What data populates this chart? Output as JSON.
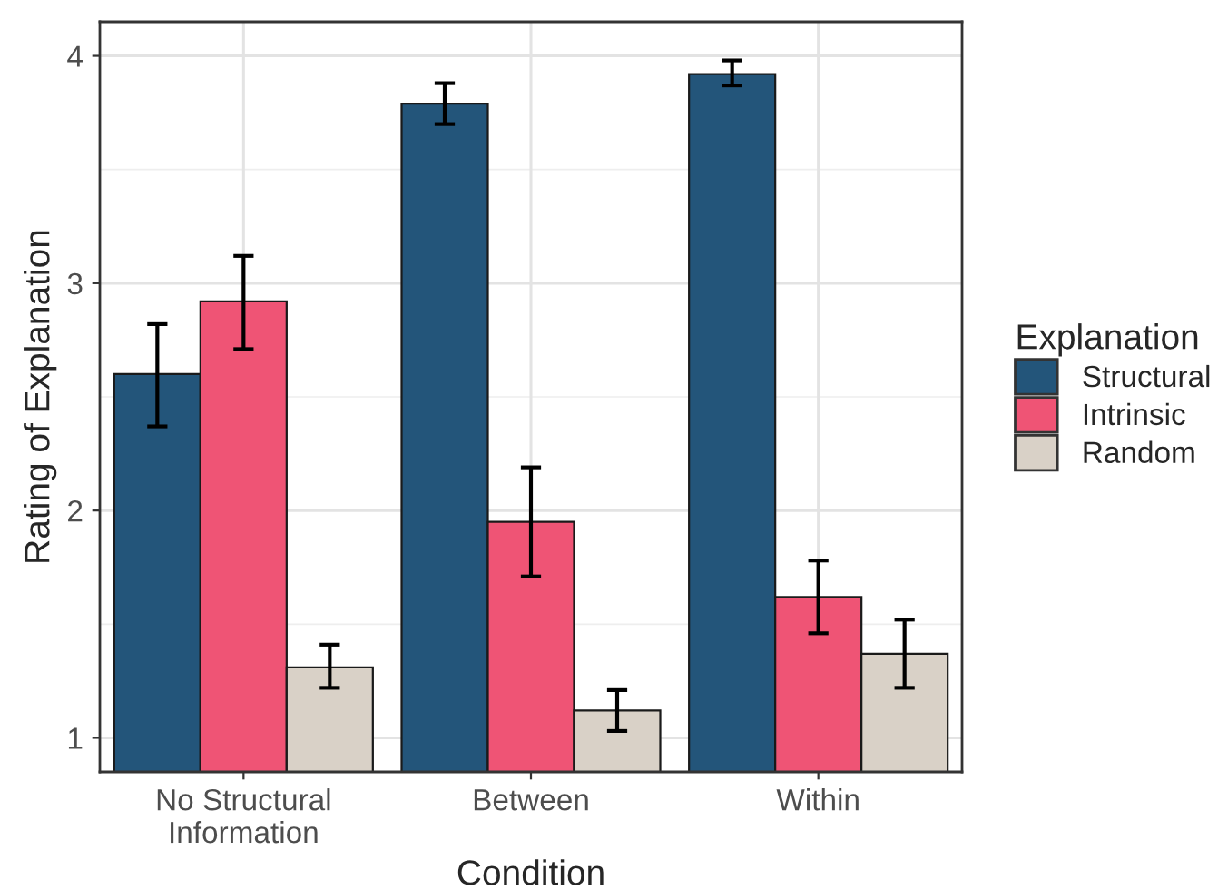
{
  "chart_data": {
    "type": "bar",
    "xlabel": "Condition",
    "ylabel": "Rating of Explanation",
    "legend_title": "Explanation",
    "categories": [
      "No Structural\nInformation",
      "Between",
      "Within"
    ],
    "series": [
      {
        "name": "Structural",
        "color": "#23557a",
        "values": [
          2.6,
          3.79,
          3.92
        ],
        "errors": [
          [
            2.37,
            2.82
          ],
          [
            3.7,
            3.88
          ],
          [
            3.87,
            3.98
          ]
        ]
      },
      {
        "name": "Intrinsic",
        "color": "#ef5475",
        "values": [
          2.92,
          1.95,
          1.62
        ],
        "errors": [
          [
            2.71,
            3.12
          ],
          [
            1.71,
            2.19
          ],
          [
            1.46,
            1.78
          ]
        ]
      },
      {
        "name": "Random",
        "color": "#d9d1c7",
        "values": [
          1.31,
          1.12,
          1.37
        ],
        "errors": [
          [
            1.22,
            1.41
          ],
          [
            1.03,
            1.21
          ],
          [
            1.22,
            1.52
          ]
        ]
      }
    ],
    "ylim": [
      0.85,
      4.15
    ],
    "yticks": [
      1,
      2,
      3,
      4
    ],
    "grid": true,
    "legend": "right"
  }
}
